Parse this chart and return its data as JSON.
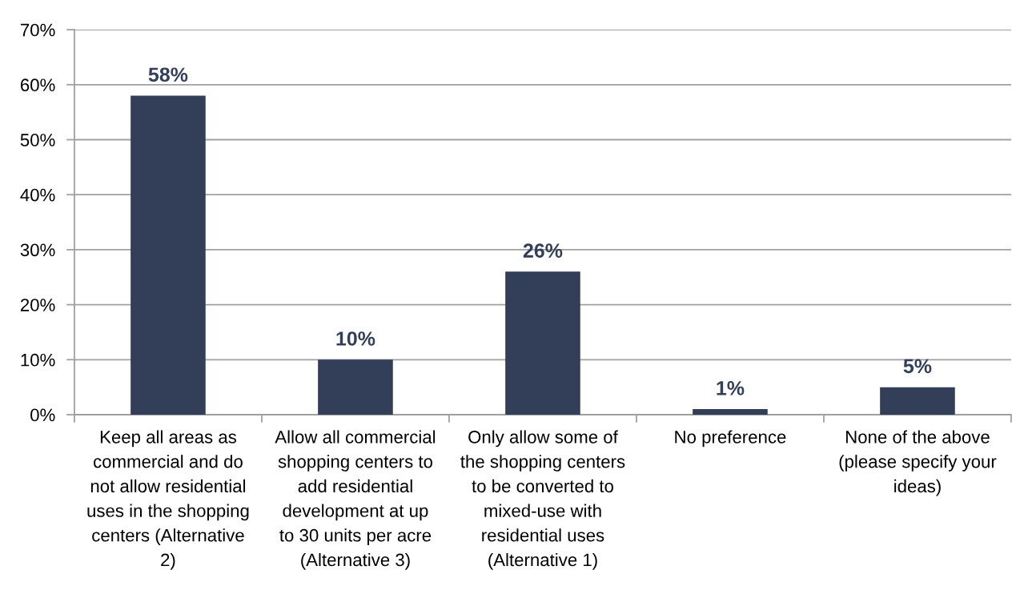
{
  "chart_data": {
    "type": "bar",
    "categories": [
      "Keep all areas as\ncommercial and do\nnot allow residential\nuses in the shopping\ncenters (Alternative\n2)",
      "Allow all commercial\nshopping centers to\nadd residential\ndevelopment at up\nto 30 units per acre\n(Alternative 3)",
      "Only allow some of\nthe shopping centers\nto be converted to\nmixed-use with\nresidential uses\n(Alternative 1)",
      "No preference",
      "None of the above\n(please specify your\nideas)"
    ],
    "values": [
      58,
      10,
      26,
      1,
      5
    ],
    "value_labels": [
      "58%",
      "10%",
      "26%",
      "1%",
      "5%"
    ],
    "color": "#333f58",
    "ylim": [
      0,
      70
    ],
    "yticks": [
      {
        "value": 0,
        "label": "0%"
      },
      {
        "value": 10,
        "label": "10%"
      },
      {
        "value": 20,
        "label": "20%"
      },
      {
        "value": 30,
        "label": "30%"
      },
      {
        "value": 40,
        "label": "40%"
      },
      {
        "value": 50,
        "label": "50%"
      },
      {
        "value": 60,
        "label": "60%"
      },
      {
        "value": 70,
        "label": "70%"
      }
    ],
    "grid": "y"
  }
}
